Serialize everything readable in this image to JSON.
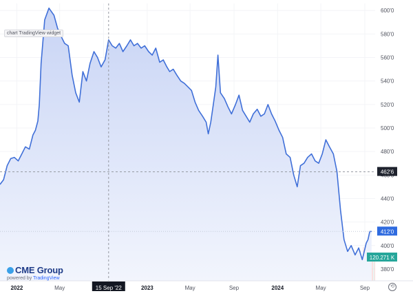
{
  "widget": {
    "label": "chart TradingView widget",
    "brand": "CME Group",
    "powered_prefix": "powered by",
    "powered_link": "TradingView",
    "crosshair_label": "15 Sep '22"
  },
  "colors": {
    "line": "#3f6fd8",
    "fill_top": "#c8d4f5",
    "fill_bottom": "#f2f5fd",
    "last_price_tag": "#2f6bdf",
    "dashed_tag": "#1e222d",
    "volume_tag": "#26a69a"
  },
  "chart_data": {
    "type": "area",
    "y_ticks": [
      "380'0",
      "400'0",
      "420'0",
      "440'0",
      "460'0",
      "480'0",
      "500'0",
      "520'0",
      "540'0",
      "560'0",
      "580'0",
      "600'0"
    ],
    "ylim": [
      370,
      606
    ],
    "x_ticks": [
      "2022",
      "May",
      "Sep",
      "2023",
      "May",
      "Sep",
      "2024",
      "May",
      "Sep"
    ],
    "x_tick_dates": [
      "2022-01-01",
      "2022-05-01",
      "2022-09-01",
      "2023-01-01",
      "2023-05-01",
      "2023-09-01",
      "2024-01-01",
      "2024-05-01",
      "2024-09-01"
    ],
    "xlim": [
      "2021-11-15",
      "2024-09-30"
    ],
    "price_markers": {
      "dashed": "462'6",
      "last": "412'0",
      "volume": "120.271 K"
    },
    "price_marker_values": {
      "dashed": 462.75,
      "last": 412.0
    },
    "series": [
      {
        "x": [
          "2021-11-15",
          "2021-11-25",
          "2021-12-05",
          "2021-12-15",
          "2021-12-25",
          "2022-01-05",
          "2022-01-15",
          "2022-01-25",
          "2022-02-05",
          "2022-02-15",
          "2022-02-22",
          "2022-03-01",
          "2022-03-05",
          "2022-03-10",
          "2022-03-20",
          "2022-04-01",
          "2022-04-15",
          "2022-04-25",
          "2022-05-05",
          "2022-05-15",
          "2022-05-25",
          "2022-06-05",
          "2022-06-15",
          "2022-06-25",
          "2022-07-05",
          "2022-07-15",
          "2022-07-25",
          "2022-08-05",
          "2022-08-15",
          "2022-08-25",
          "2022-09-05",
          "2022-09-15",
          "2022-09-25",
          "2022-10-05",
          "2022-10-15",
          "2022-10-25",
          "2022-11-05",
          "2022-11-15",
          "2022-11-25",
          "2022-12-05",
          "2022-12-15",
          "2022-12-25",
          "2023-01-05",
          "2023-01-15",
          "2023-01-25",
          "2023-02-05",
          "2023-02-15",
          "2023-02-25",
          "2023-03-05",
          "2023-03-15",
          "2023-03-25",
          "2023-04-05",
          "2023-04-15",
          "2023-04-25",
          "2023-05-05",
          "2023-05-15",
          "2023-05-25",
          "2023-06-05",
          "2023-06-15",
          "2023-06-21",
          "2023-06-28",
          "2023-07-05",
          "2023-07-12",
          "2023-07-18",
          "2023-07-25",
          "2023-08-05",
          "2023-08-15",
          "2023-08-25",
          "2023-09-05",
          "2023-09-15",
          "2023-09-25",
          "2023-10-05",
          "2023-10-15",
          "2023-10-25",
          "2023-11-05",
          "2023-11-15",
          "2023-11-25",
          "2023-12-05",
          "2023-12-15",
          "2023-12-25",
          "2024-01-05",
          "2024-01-15",
          "2024-01-25",
          "2024-02-05",
          "2024-02-15",
          "2024-02-25",
          "2024-03-05",
          "2024-03-15",
          "2024-03-25",
          "2024-04-05",
          "2024-04-15",
          "2024-04-25",
          "2024-05-05",
          "2024-05-15",
          "2024-05-25",
          "2024-06-05",
          "2024-06-15",
          "2024-06-25",
          "2024-07-05",
          "2024-07-15",
          "2024-07-25",
          "2024-08-05",
          "2024-08-15",
          "2024-08-25",
          "2024-09-05",
          "2024-09-10",
          "2024-09-15",
          "2024-09-20"
        ],
        "y": [
          452,
          456,
          468,
          474,
          475,
          472,
          478,
          484,
          482,
          494,
          498,
          506,
          520,
          555,
          592,
          602,
          596,
          585,
          578,
          572,
          570,
          545,
          530,
          522,
          548,
          540,
          555,
          565,
          560,
          552,
          558,
          575,
          570,
          568,
          572,
          565,
          570,
          575,
          570,
          572,
          568,
          570,
          565,
          562,
          568,
          556,
          558,
          552,
          548,
          550,
          545,
          540,
          538,
          535,
          532,
          522,
          515,
          510,
          505,
          495,
          505,
          520,
          535,
          562,
          530,
          525,
          518,
          512,
          520,
          528,
          515,
          510,
          505,
          512,
          516,
          510,
          512,
          520,
          512,
          506,
          498,
          492,
          478,
          475,
          460,
          450,
          468,
          470,
          475,
          478,
          472,
          470,
          478,
          490,
          484,
          478,
          463,
          430,
          405,
          395,
          400,
          392,
          398,
          388,
          402,
          405,
          412,
          412
        ]
      }
    ]
  }
}
